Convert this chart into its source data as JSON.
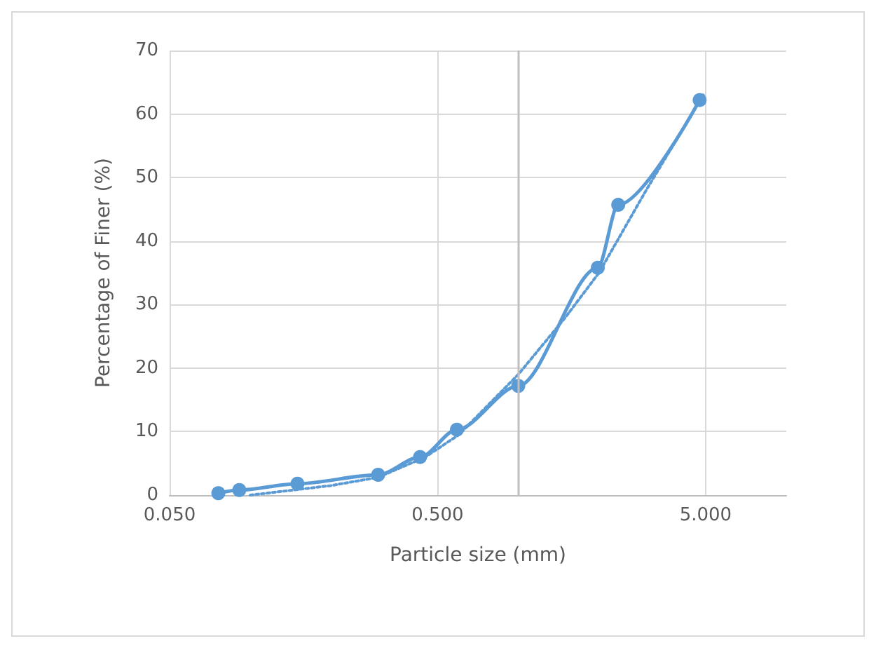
{
  "chart_data": {
    "type": "line",
    "xlabel": "Particle size (mm)",
    "ylabel": "Percentage of Finer (%)",
    "log": "x",
    "xlim": [
      0.05,
      10
    ],
    "xticks": [
      {
        "value": 0.05,
        "label": "0.050"
      },
      {
        "value": 0.5,
        "label": "0.500"
      },
      {
        "value": 5,
        "label": "5.000"
      }
    ],
    "ylim": [
      0,
      70
    ],
    "yticks": [
      0,
      10,
      20,
      30,
      40,
      50,
      60,
      70
    ],
    "grid": true,
    "marker": "circle",
    "line_style": "solid",
    "ref_lines": [
      {
        "axis": "x",
        "value": 1,
        "color": "#bfbfbf"
      }
    ],
    "series": [
      {
        "color": "#5b9bd5",
        "x": [
          0.076,
          0.091,
          0.15,
          0.3,
          0.43,
          0.59,
          1.0,
          1.98,
          2.36,
          4.75
        ],
        "values": [
          0.3,
          0.8,
          1.8,
          3.2,
          6,
          10.3,
          17.2,
          35.8,
          45.7,
          62.2
        ]
      },
      {
        "color": "#5b9bd5",
        "marker": "none",
        "line_style": "dotted",
        "x": [
          0.1,
          0.2,
          0.3,
          0.45,
          0.6,
          1.0,
          1.5,
          2.0,
          3.0,
          4.9
        ],
        "values": [
          0,
          1.5,
          2.8,
          6,
          9.5,
          19,
          28,
          35,
          48,
          63
        ]
      }
    ]
  }
}
